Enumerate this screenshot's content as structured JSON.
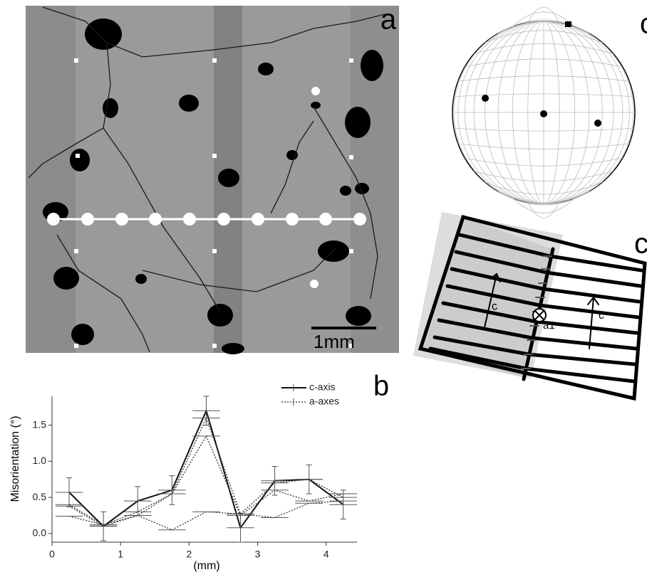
{
  "panel_a": {
    "label": "a",
    "scale_bar": "1mm"
  },
  "panel_c": {
    "label": "c"
  },
  "panel_d": {
    "label": "c",
    "arrow_left": "c",
    "arrow_right": "c",
    "axis": "a1"
  },
  "chart_data": {
    "type": "line",
    "label": "b",
    "x_label": "(mm)",
    "y_label": "Misorientation (°)",
    "x": [
      0.25,
      0.75,
      1.25,
      1.75,
      2.25,
      2.75,
      3.25,
      3.75,
      4.25
    ],
    "xerr": [
      0.2,
      0.2,
      0.2,
      0.2,
      0.2,
      0.2,
      0.2,
      0.2,
      0.2
    ],
    "series": [
      {
        "name": "c-axis",
        "style": "solid",
        "color": "#111",
        "values": [
          0.57,
          0.1,
          0.45,
          0.6,
          1.7,
          0.08,
          0.73,
          0.75,
          0.4
        ],
        "yerr": [
          0.2,
          0.2,
          0.2,
          0.2,
          0.2,
          0.2,
          0.2,
          0.2,
          0.2
        ]
      },
      {
        "name": "a-axes",
        "style": "dotted",
        "color": "#333",
        "values": [
          [
            0.38,
            0.1,
            0.25,
            0.55,
            1.6,
            0.27,
            0.7,
            0.75,
            0.5
          ],
          [
            0.24,
            0.12,
            0.25,
            0.05,
            0.3,
            0.27,
            0.22,
            0.42,
            0.45
          ],
          [
            0.4,
            0.12,
            0.3,
            0.55,
            1.35,
            0.25,
            0.6,
            0.45,
            0.55
          ]
        ]
      }
    ],
    "xlim": [
      0,
      4.45
    ],
    "ylim": [
      -0.12,
      1.9
    ],
    "xticks": [
      0,
      1,
      2,
      3,
      4
    ],
    "yticks": [
      {
        "value": 0,
        "label": "0.0"
      },
      {
        "value": 0.5,
        "label": "0.5"
      },
      {
        "value": 1,
        "label": "1.0"
      },
      {
        "value": 1.5,
        "label": "1.5"
      }
    ]
  }
}
